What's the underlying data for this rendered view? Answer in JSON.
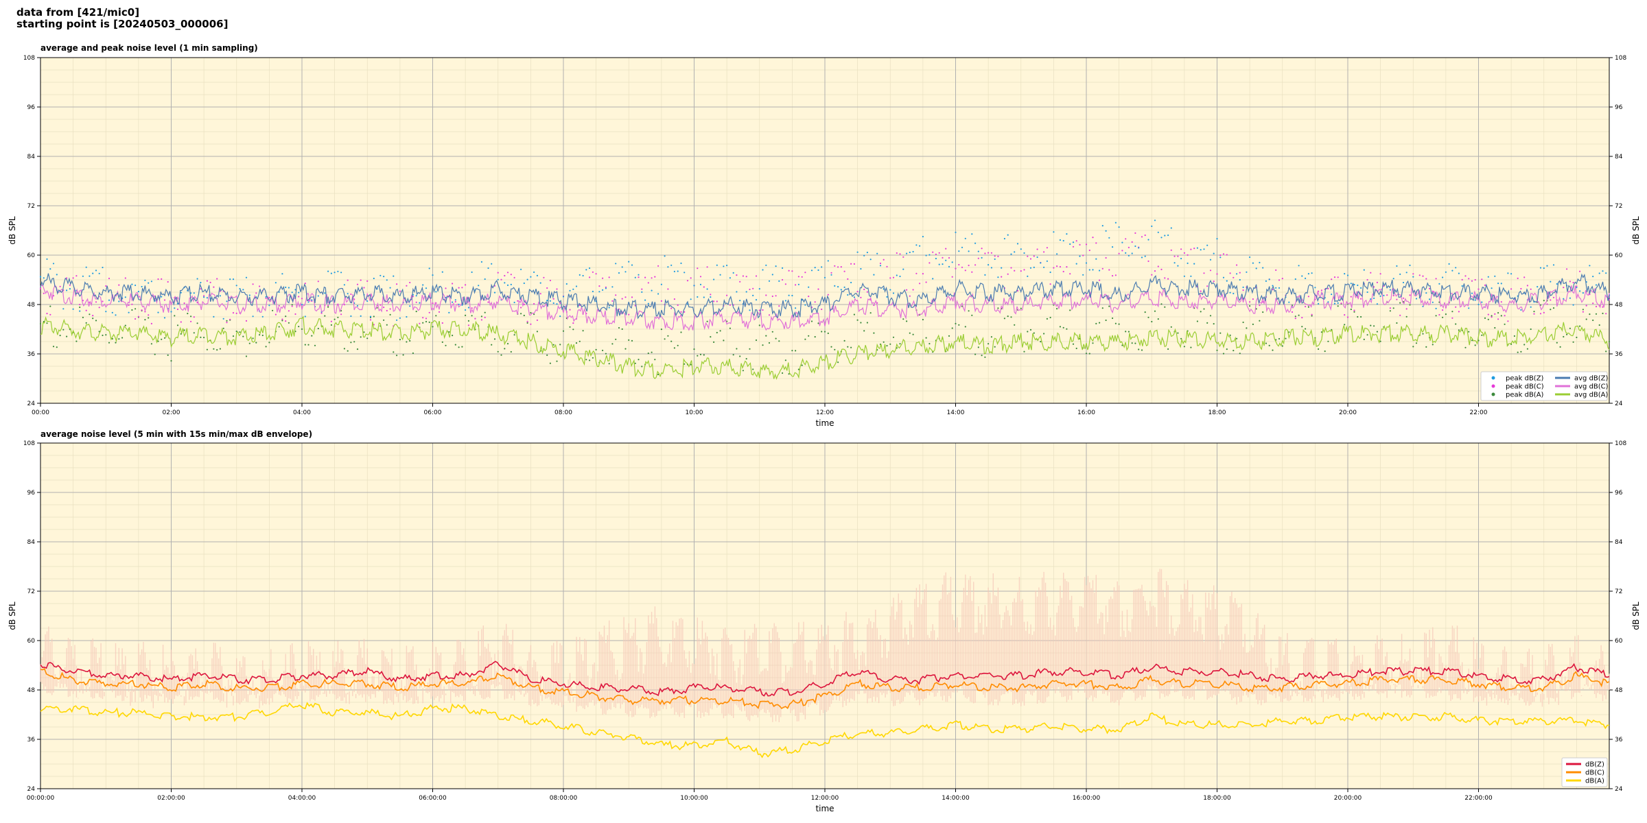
{
  "header": {
    "line1": "data from [421/mic0]",
    "line2": "starting point is [20240503_000006]"
  },
  "colors": {
    "plot_bg": "#fff6d9",
    "grid_major": "#b0b0b0",
    "grid_minor": "#e8e0c0",
    "peak_z": "#1f9be0",
    "peak_c": "#e63ad8",
    "peak_a": "#3c8a3c",
    "avg_z": "#4a7bb0",
    "avg_c": "#e070d8",
    "avg_a": "#9acd32",
    "env_z": "#dc143c",
    "env_c": "#ff8c00",
    "env_a": "#ffd700",
    "envelope_fill": "#f6c8b8"
  },
  "chart_data": [
    {
      "type": "line",
      "title": "average and peak noise level (1 min sampling)",
      "xlabel": "time",
      "ylabel": "dB SPL",
      "xlim": [
        0,
        24
      ],
      "ylim": [
        24,
        108
      ],
      "yticks": [
        "24",
        "36",
        "48",
        "60",
        "72",
        "84",
        "96",
        "108"
      ],
      "xticks": [
        "00:00",
        "02:00",
        "04:00",
        "06:00",
        "08:00",
        "10:00",
        "12:00",
        "14:00",
        "16:00",
        "18:00",
        "20:00",
        "22:00"
      ],
      "grid": true,
      "legend_position": "bottom-right",
      "legend": [
        "peak dB(Z)",
        "peak dB(C)",
        "peak dB(A)",
        "avg dB(Z)",
        "avg dB(C)",
        "avg dB(A)"
      ],
      "x": [
        0,
        0.5,
        1,
        1.5,
        2,
        2.5,
        3,
        3.5,
        4,
        4.5,
        5,
        5.5,
        6,
        6.5,
        7,
        7.5,
        8,
        8.5,
        9,
        9.5,
        10,
        10.5,
        11,
        11.5,
        12,
        12.5,
        13,
        13.5,
        14,
        14.5,
        15,
        15.5,
        16,
        16.5,
        17,
        17.5,
        18,
        18.5,
        19,
        19.5,
        20,
        20.5,
        21,
        21.5,
        22,
        22.5,
        23,
        23.5,
        24
      ],
      "series": [
        {
          "name": "avg dB(Z)",
          "values": [
            55,
            53,
            52,
            52,
            51,
            52,
            51,
            51,
            52,
            51,
            52,
            51,
            52,
            51,
            53,
            51,
            50,
            49,
            48,
            48,
            48,
            49,
            48,
            48,
            49,
            53,
            51,
            50,
            53,
            52,
            52,
            53,
            53,
            51,
            54,
            53,
            53,
            52,
            51,
            52,
            52,
            53,
            53,
            52,
            52,
            51,
            52,
            55,
            52
          ]
        },
        {
          "name": "avg dB(C)",
          "values": [
            53,
            51,
            50,
            50,
            49,
            50,
            49,
            49,
            50,
            49,
            50,
            49,
            50,
            49,
            50,
            48,
            47,
            46,
            46,
            45,
            45,
            46,
            45,
            45,
            46,
            49,
            48,
            48,
            50,
            49,
            49,
            50,
            50,
            49,
            51,
            50,
            50,
            49,
            49,
            50,
            50,
            51,
            51,
            50,
            50,
            49,
            50,
            52,
            50
          ]
        },
        {
          "name": "avg dB(A)",
          "values": [
            44,
            43,
            42,
            42,
            41,
            42,
            41,
            42,
            44,
            43,
            43,
            42,
            43,
            43,
            42,
            40,
            38,
            36,
            34,
            33,
            34,
            34,
            33,
            33,
            35,
            37,
            38,
            39,
            40,
            39,
            40,
            40,
            40,
            40,
            41,
            41,
            40,
            40,
            41,
            41,
            42,
            42,
            42,
            42,
            41,
            41,
            42,
            43,
            40
          ]
        },
        {
          "name": "peak dB(Z)",
          "values": [
            57,
            55,
            54,
            54,
            53,
            54,
            53,
            53,
            54,
            53,
            54,
            53,
            54,
            53,
            58,
            54,
            53,
            56,
            56,
            57,
            57,
            56,
            55,
            56,
            57,
            58,
            58,
            62,
            64,
            63,
            62,
            63,
            64,
            65,
            66,
            63,
            61,
            58,
            55,
            55,
            55,
            55,
            56,
            55,
            55,
            54,
            55,
            57,
            54
          ]
        },
        {
          "name": "peak dB(C)",
          "values": [
            55,
            53,
            52,
            52,
            51,
            52,
            51,
            51,
            52,
            51,
            52,
            51,
            52,
            51,
            55,
            52,
            51,
            54,
            54,
            55,
            55,
            55,
            54,
            54,
            55,
            56,
            57,
            60,
            62,
            61,
            60,
            61,
            62,
            64,
            64,
            61,
            59,
            56,
            53,
            53,
            53,
            53,
            54,
            53,
            53,
            52,
            53,
            55,
            52
          ]
        },
        {
          "name": "peak dB(A)",
          "values": [
            46,
            45,
            44,
            44,
            43,
            44,
            43,
            44,
            46,
            45,
            45,
            44,
            45,
            45,
            44,
            43,
            42,
            41,
            40,
            40,
            41,
            41,
            40,
            40,
            42,
            43,
            43,
            44,
            45,
            44,
            45,
            45,
            45,
            45,
            46,
            46,
            45,
            45,
            45,
            45,
            46,
            46,
            46,
            46,
            45,
            45,
            46,
            47,
            44
          ]
        }
      ]
    },
    {
      "type": "line",
      "title": "average noise level (5 min with 15s min/max dB envelope)",
      "xlabel": "time",
      "ylabel": "dB SPL",
      "xlim": [
        0,
        24
      ],
      "ylim": [
        24,
        108
      ],
      "yticks": [
        "24",
        "36",
        "48",
        "60",
        "72",
        "84",
        "96",
        "108"
      ],
      "xticks": [
        "00:00:00",
        "02:00:00",
        "04:00:00",
        "06:00:00",
        "08:00:00",
        "10:00:00",
        "12:00:00",
        "14:00:00",
        "16:00:00",
        "18:00:00",
        "20:00:00",
        "22:00:00"
      ],
      "grid": true,
      "legend_position": "bottom-right",
      "legend": [
        "dB(Z)",
        "dB(C)",
        "dB(A)"
      ],
      "x": [
        0,
        0.5,
        1,
        1.5,
        2,
        2.5,
        3,
        3.5,
        4,
        4.5,
        5,
        5.5,
        6,
        6.5,
        7,
        7.5,
        8,
        8.5,
        9,
        9.5,
        10,
        10.5,
        11,
        11.5,
        12,
        12.5,
        13,
        13.5,
        14,
        14.5,
        15,
        15.5,
        16,
        16.5,
        17,
        17.5,
        18,
        18.5,
        19,
        19.5,
        20,
        20.5,
        21,
        21.5,
        22,
        22.5,
        23,
        23.5,
        24
      ],
      "series": [
        {
          "name": "dB(Z)",
          "values": [
            55,
            53,
            52,
            52,
            51,
            52,
            51,
            51,
            52,
            52,
            53,
            51,
            52,
            52,
            55,
            51,
            50,
            49,
            49,
            48,
            49,
            49,
            48,
            48,
            50,
            53,
            51,
            51,
            52,
            52,
            52,
            53,
            53,
            52,
            54,
            53,
            53,
            52,
            51,
            52,
            52,
            53,
            53,
            53,
            52,
            51,
            51,
            54,
            52
          ]
        },
        {
          "name": "dB(C)",
          "values": [
            53,
            51,
            50,
            50,
            49,
            50,
            49,
            49,
            50,
            50,
            50,
            49,
            50,
            50,
            52,
            49,
            48,
            47,
            46,
            46,
            46,
            46,
            45,
            45,
            47,
            50,
            49,
            49,
            50,
            49,
            49,
            50,
            50,
            49,
            51,
            50,
            50,
            49,
            49,
            50,
            50,
            51,
            51,
            51,
            50,
            49,
            49,
            52,
            50
          ]
        },
        {
          "name": "dB(A)",
          "values": [
            44,
            44,
            43,
            43,
            42,
            42,
            42,
            43,
            45,
            43,
            43,
            42,
            44,
            44,
            42,
            41,
            40,
            38,
            37,
            35,
            35,
            36,
            33,
            34,
            36,
            38,
            38,
            39,
            40,
            39,
            39,
            40,
            39,
            39,
            42,
            40,
            40,
            40,
            41,
            41,
            42,
            42,
            42,
            42,
            41,
            41,
            41,
            41,
            40
          ]
        },
        {
          "name": "envelope max",
          "values": [
            60,
            58,
            56,
            56,
            55,
            56,
            55,
            55,
            56,
            56,
            57,
            55,
            56,
            57,
            62,
            56,
            56,
            60,
            63,
            65,
            63,
            62,
            60,
            61,
            63,
            64,
            68,
            70,
            74,
            73,
            72,
            73,
            74,
            72,
            75,
            71,
            70,
            66,
            58,
            57,
            57,
            58,
            58,
            62,
            56,
            55,
            55,
            58,
            56
          ]
        },
        {
          "name": "envelope min",
          "values": [
            50,
            49,
            48,
            48,
            47,
            48,
            47,
            47,
            48,
            48,
            48,
            47,
            48,
            48,
            49,
            47,
            46,
            45,
            44,
            44,
            44,
            44,
            43,
            43,
            45,
            48,
            47,
            47,
            48,
            47,
            47,
            48,
            48,
            47,
            49,
            48,
            48,
            47,
            47,
            48,
            48,
            49,
            49,
            48,
            48,
            47,
            47,
            49,
            48
          ]
        }
      ]
    }
  ]
}
